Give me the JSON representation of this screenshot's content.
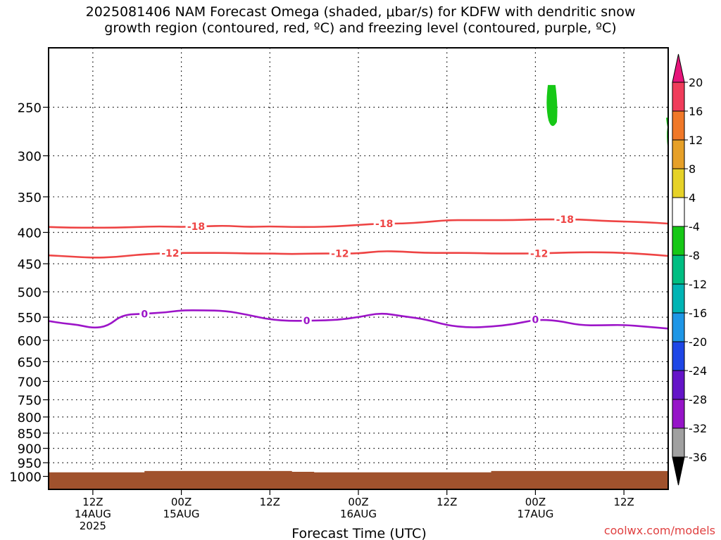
{
  "title": {
    "line1": "2025081406 NAM Forecast Omega (shaded, μbar/s) for KDFW with dendritic snow",
    "line2": "growth region (contoured, red, ºC) and freezing level (contoured, purple, ºC)"
  },
  "watermark": "coolwx.com/models",
  "chart_data": {
    "type": "time-height",
    "title": "2025081406 NAM Forecast Omega (shaded, μbar/s) for KDFW with dendritic snow growth region (contoured, red, ºC) and freezing level (contoured, purple, ºC)",
    "xlabel": "Forecast Time (UTC)",
    "ylabel": "",
    "y_scale": "log-pressure",
    "ylim": [
      1050,
      200
    ],
    "xlim_hours": [
      0,
      84
    ],
    "y_ticks": [
      "250",
      "300",
      "350",
      "400",
      "450",
      "500",
      "550",
      "600",
      "650",
      "700",
      "750",
      "800",
      "850",
      "900",
      "950",
      "1000"
    ],
    "x_ticks": [
      {
        "hour": 6,
        "line1": "12Z",
        "line2": "14AUG",
        "line3": "2025"
      },
      {
        "hour": 18,
        "line1": "00Z",
        "line2": "15AUG",
        "line3": ""
      },
      {
        "hour": 30,
        "line1": "12Z",
        "line2": "",
        "line3": ""
      },
      {
        "hour": 42,
        "line1": "00Z",
        "line2": "16AUG",
        "line3": ""
      },
      {
        "hour": 54,
        "line1": "12Z",
        "line2": "",
        "line3": ""
      },
      {
        "hour": 66,
        "line1": "00Z",
        "line2": "17AUG",
        "line3": ""
      },
      {
        "hour": 78,
        "line1": "12Z",
        "line2": "",
        "line3": ""
      }
    ],
    "grid": true,
    "colorbar": {
      "ticks": [
        "20",
        "16",
        "12",
        "8",
        "4",
        "-4",
        "-8",
        "-12",
        "-16",
        "-20",
        "-24",
        "-28",
        "-32",
        "-36"
      ],
      "bands": [
        "#f03c5a",
        "#f07828",
        "#e6a028",
        "#e6d228",
        "#ffffff",
        "#16c816",
        "#00be82",
        "#00b4b4",
        "#1e96e6",
        "#1e46e6",
        "#6414c8",
        "#9614c8",
        "#a0a0a0"
      ],
      "top_arrow_color": "#e6147a",
      "bottom_arrow_color": "#000000"
    },
    "contours": [
      {
        "name": "-18",
        "color": "#ee4444",
        "labels": [
          {
            "hour": 20,
            "text": "-18"
          },
          {
            "hour": 45.5,
            "text": "-18"
          },
          {
            "hour": 70,
            "text": "-18"
          }
        ],
        "points": [
          [
            0,
            392
          ],
          [
            3,
            393
          ],
          [
            6,
            393
          ],
          [
            9,
            393
          ],
          [
            12,
            392
          ],
          [
            15,
            391
          ],
          [
            18,
            392
          ],
          [
            21,
            391
          ],
          [
            24,
            390
          ],
          [
            27,
            392
          ],
          [
            30,
            391
          ],
          [
            33,
            392
          ],
          [
            36,
            392
          ],
          [
            39,
            391
          ],
          [
            42,
            389
          ],
          [
            45,
            387
          ],
          [
            48,
            387
          ],
          [
            51,
            385
          ],
          [
            54,
            382
          ],
          [
            57,
            382
          ],
          [
            60,
            382
          ],
          [
            63,
            382
          ],
          [
            66,
            381
          ],
          [
            69,
            381
          ],
          [
            72,
            381
          ],
          [
            75,
            383
          ],
          [
            78,
            384
          ],
          [
            81,
            385
          ],
          [
            84,
            387
          ]
        ]
      },
      {
        "name": "-12",
        "color": "#ee4444",
        "labels": [
          {
            "hour": 16.5,
            "text": "-12"
          },
          {
            "hour": 39.5,
            "text": "-12"
          },
          {
            "hour": 66.5,
            "text": "-12"
          }
        ],
        "points": [
          [
            0,
            436
          ],
          [
            3,
            438
          ],
          [
            6,
            440
          ],
          [
            9,
            439
          ],
          [
            12,
            435
          ],
          [
            15,
            433
          ],
          [
            18,
            432
          ],
          [
            21,
            432
          ],
          [
            24,
            432
          ],
          [
            27,
            433
          ],
          [
            30,
            433
          ],
          [
            33,
            434
          ],
          [
            36,
            433
          ],
          [
            39,
            433
          ],
          [
            42,
            433
          ],
          [
            45,
            429
          ],
          [
            48,
            430
          ],
          [
            51,
            432
          ],
          [
            54,
            432
          ],
          [
            57,
            432
          ],
          [
            60,
            433
          ],
          [
            63,
            433
          ],
          [
            66,
            433
          ],
          [
            69,
            432
          ],
          [
            72,
            431
          ],
          [
            75,
            431
          ],
          [
            78,
            432
          ],
          [
            81,
            434
          ],
          [
            84,
            437
          ]
        ]
      },
      {
        "name": "0",
        "color": "#9c14c8",
        "labels": [
          {
            "hour": 13,
            "text": "0"
          },
          {
            "hour": 35,
            "text": "0"
          },
          {
            "hour": 66,
            "text": "0"
          }
        ],
        "points": [
          [
            0,
            558
          ],
          [
            2,
            563
          ],
          [
            4,
            566
          ],
          [
            6,
            573
          ],
          [
            8,
            569
          ],
          [
            10,
            545
          ],
          [
            13,
            543
          ],
          [
            16,
            540
          ],
          [
            18,
            536
          ],
          [
            21,
            536
          ],
          [
            24,
            537
          ],
          [
            27,
            545
          ],
          [
            30,
            555
          ],
          [
            33,
            558
          ],
          [
            36,
            557
          ],
          [
            39,
            556
          ],
          [
            42,
            550
          ],
          [
            45,
            541
          ],
          [
            48,
            548
          ],
          [
            51,
            554
          ],
          [
            54,
            567
          ],
          [
            57,
            572
          ],
          [
            60,
            570
          ],
          [
            63,
            565
          ],
          [
            66,
            555
          ],
          [
            69,
            557
          ],
          [
            72,
            567
          ],
          [
            75,
            567
          ],
          [
            78,
            566
          ],
          [
            81,
            570
          ],
          [
            84,
            574
          ]
        ]
      }
    ],
    "omega_shaded": [
      {
        "range": "-4 to -8",
        "color": "#16c816",
        "hour_range": [
          67.5,
          69
        ],
        "pressure_range": [
          270,
          230
        ]
      },
      {
        "range": "-4 to -8",
        "color": "#16c816",
        "hour_range": [
          83.8,
          84
        ],
        "pressure_range": [
          305,
          260
        ]
      }
    ],
    "terrain": {
      "color": "#a0522d",
      "surface_pressure": [
        [
          0,
          985
        ],
        [
          13,
          980
        ],
        [
          20,
          980
        ],
        [
          33,
          983
        ],
        [
          36,
          985
        ],
        [
          50,
          985
        ],
        [
          60,
          980
        ],
        [
          80,
          980
        ],
        [
          84,
          985
        ]
      ]
    }
  }
}
